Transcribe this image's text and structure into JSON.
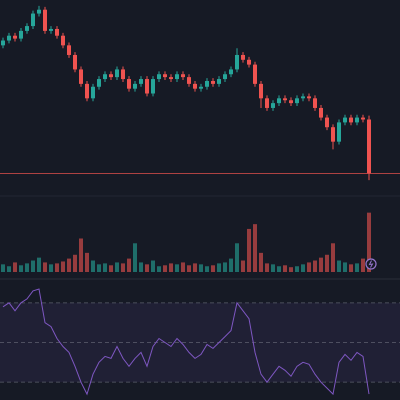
{
  "chart_data": [
    {
      "type": "candlestick",
      "up_color": "#26a69a",
      "down_color": "#ef5350",
      "ylim": [
        10,
        200
      ],
      "open": [
        155,
        160,
        165,
        162,
        170,
        175,
        188,
        192,
        170,
        172,
        165,
        155,
        145,
        130,
        115,
        100,
        112,
        120,
        125,
        122,
        130,
        120,
        110,
        115,
        120,
        105,
        120,
        125,
        122,
        120,
        125,
        122,
        115,
        110,
        112,
        118,
        115,
        120,
        125,
        130,
        145,
        140,
        135,
        115,
        100,
        90,
        95,
        100,
        98,
        95,
        100,
        102,
        100,
        90,
        80,
        70,
        55,
        75,
        80,
        75,
        80,
        78
      ],
      "high": [
        163,
        168,
        168,
        173,
        178,
        191,
        196,
        195,
        175,
        175,
        168,
        158,
        148,
        133,
        118,
        115,
        123,
        128,
        128,
        133,
        133,
        123,
        118,
        123,
        123,
        123,
        128,
        128,
        125,
        128,
        128,
        125,
        118,
        115,
        121,
        121,
        123,
        128,
        133,
        152,
        148,
        143,
        138,
        118,
        103,
        98,
        103,
        103,
        101,
        103,
        105,
        105,
        103,
        93,
        83,
        73,
        78,
        83,
        83,
        83,
        83,
        82
      ],
      "low": [
        152,
        157,
        159,
        159,
        167,
        172,
        185,
        167,
        167,
        162,
        152,
        142,
        127,
        112,
        97,
        97,
        109,
        117,
        119,
        119,
        117,
        107,
        107,
        112,
        102,
        102,
        117,
        119,
        117,
        117,
        119,
        112,
        107,
        107,
        109,
        112,
        112,
        117,
        122,
        127,
        137,
        132,
        112,
        90,
        87,
        87,
        92,
        95,
        92,
        92,
        97,
        97,
        87,
        77,
        67,
        47,
        52,
        72,
        72,
        72,
        75,
        15
      ],
      "close": [
        160,
        165,
        162,
        170,
        175,
        188,
        192,
        170,
        172,
        165,
        155,
        145,
        130,
        115,
        100,
        112,
        120,
        125,
        122,
        130,
        120,
        110,
        115,
        120,
        105,
        120,
        125,
        122,
        120,
        125,
        122,
        115,
        110,
        112,
        118,
        115,
        120,
        125,
        130,
        145,
        140,
        135,
        115,
        100,
        90,
        95,
        100,
        98,
        95,
        100,
        102,
        100,
        90,
        80,
        70,
        55,
        75,
        80,
        75,
        80,
        78,
        22
      ]
    },
    {
      "type": "bar",
      "ylim": [
        0,
        70
      ],
      "values": [
        8,
        6,
        10,
        7,
        9,
        12,
        15,
        10,
        8,
        9,
        11,
        14,
        18,
        35,
        20,
        12,
        8,
        9,
        7,
        10,
        9,
        14,
        30,
        10,
        8,
        12,
        6,
        7,
        9,
        8,
        10,
        7,
        9,
        8,
        6,
        7,
        9,
        10,
        14,
        30,
        12,
        45,
        50,
        20,
        9,
        8,
        6,
        7,
        5,
        6,
        8,
        10,
        12,
        15,
        18,
        30,
        12,
        10,
        8,
        9,
        14,
        62
      ]
    },
    {
      "type": "line",
      "color": "#7e57c2",
      "ylim": [
        21,
        79
      ],
      "hlines": [
        70,
        50,
        30
      ],
      "values": [
        68,
        70,
        66,
        70,
        72,
        76,
        77,
        60,
        58,
        52,
        48,
        45,
        38,
        30,
        24,
        34,
        40,
        43,
        42,
        48,
        42,
        38,
        42,
        45,
        38,
        48,
        52,
        50,
        48,
        52,
        49,
        45,
        42,
        44,
        49,
        47,
        50,
        53,
        56,
        70,
        66,
        62,
        45,
        34,
        30,
        34,
        38,
        36,
        33,
        38,
        40,
        39,
        34,
        30,
        27,
        24,
        40,
        44,
        41,
        45,
        43,
        24
      ]
    }
  ]
}
